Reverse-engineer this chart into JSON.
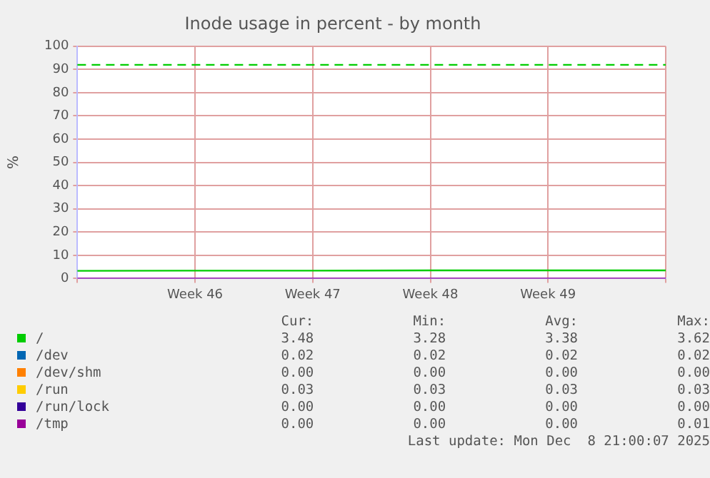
{
  "chart_data": {
    "type": "line",
    "title": "Inode usage in percent - by month",
    "ylabel": "%",
    "categories": [
      null,
      "Week 46",
      "Week 47",
      "Week 48",
      "Week 49",
      null
    ],
    "ylim": [
      0,
      100
    ],
    "yticks": [
      0,
      10,
      20,
      30,
      40,
      50,
      60,
      70,
      80,
      90,
      100
    ],
    "grid": true,
    "legend": "bottom",
    "marker": "none",
    "line_style": "solid",
    "series": [
      {
        "name": "/",
        "color": "#00cc00",
        "values": [
          3.3,
          3.4,
          3.4,
          3.5,
          3.5,
          3.5
        ]
      },
      {
        "name": "/dev",
        "color": "#0066b3",
        "values": [
          null,
          null,
          null,
          null,
          null,
          null
        ]
      },
      {
        "name": "/dev/shm",
        "color": "#ff8000",
        "values": [
          null,
          null,
          null,
          null,
          null,
          null
        ]
      },
      {
        "name": "/run",
        "color": "#ffcc00",
        "values": [
          null,
          null,
          null,
          null,
          null,
          null
        ]
      },
      {
        "name": "/run/lock",
        "color": "#330099",
        "values": [
          null,
          null,
          null,
          null,
          null,
          null
        ]
      },
      {
        "name": "/tmp",
        "color": "#990099",
        "values": [
          0,
          0,
          0,
          0,
          0,
          0
        ]
      }
    ],
    "ref_lines": [
      {
        "axis": "y",
        "value": 92,
        "color": "#00cc00",
        "line_style": "dashed"
      }
    ],
    "annotations": [
      "Cur:",
      "Min:",
      "Avg:",
      "Max:",
      "3.48",
      "3.28",
      "3.38",
      "3.62",
      "0.02",
      "0.02",
      "0.02",
      "0.02",
      "0.00",
      "0.00",
      "0.00",
      "0.00",
      "0.03",
      "0.03",
      "0.03",
      "0.03",
      "0.00",
      "0.00",
      "0.00",
      "0.00",
      "0.00",
      "0.00",
      "0.00",
      "0.01",
      "Last update: Mon Dec  8 21:00:07 2025"
    ]
  }
}
